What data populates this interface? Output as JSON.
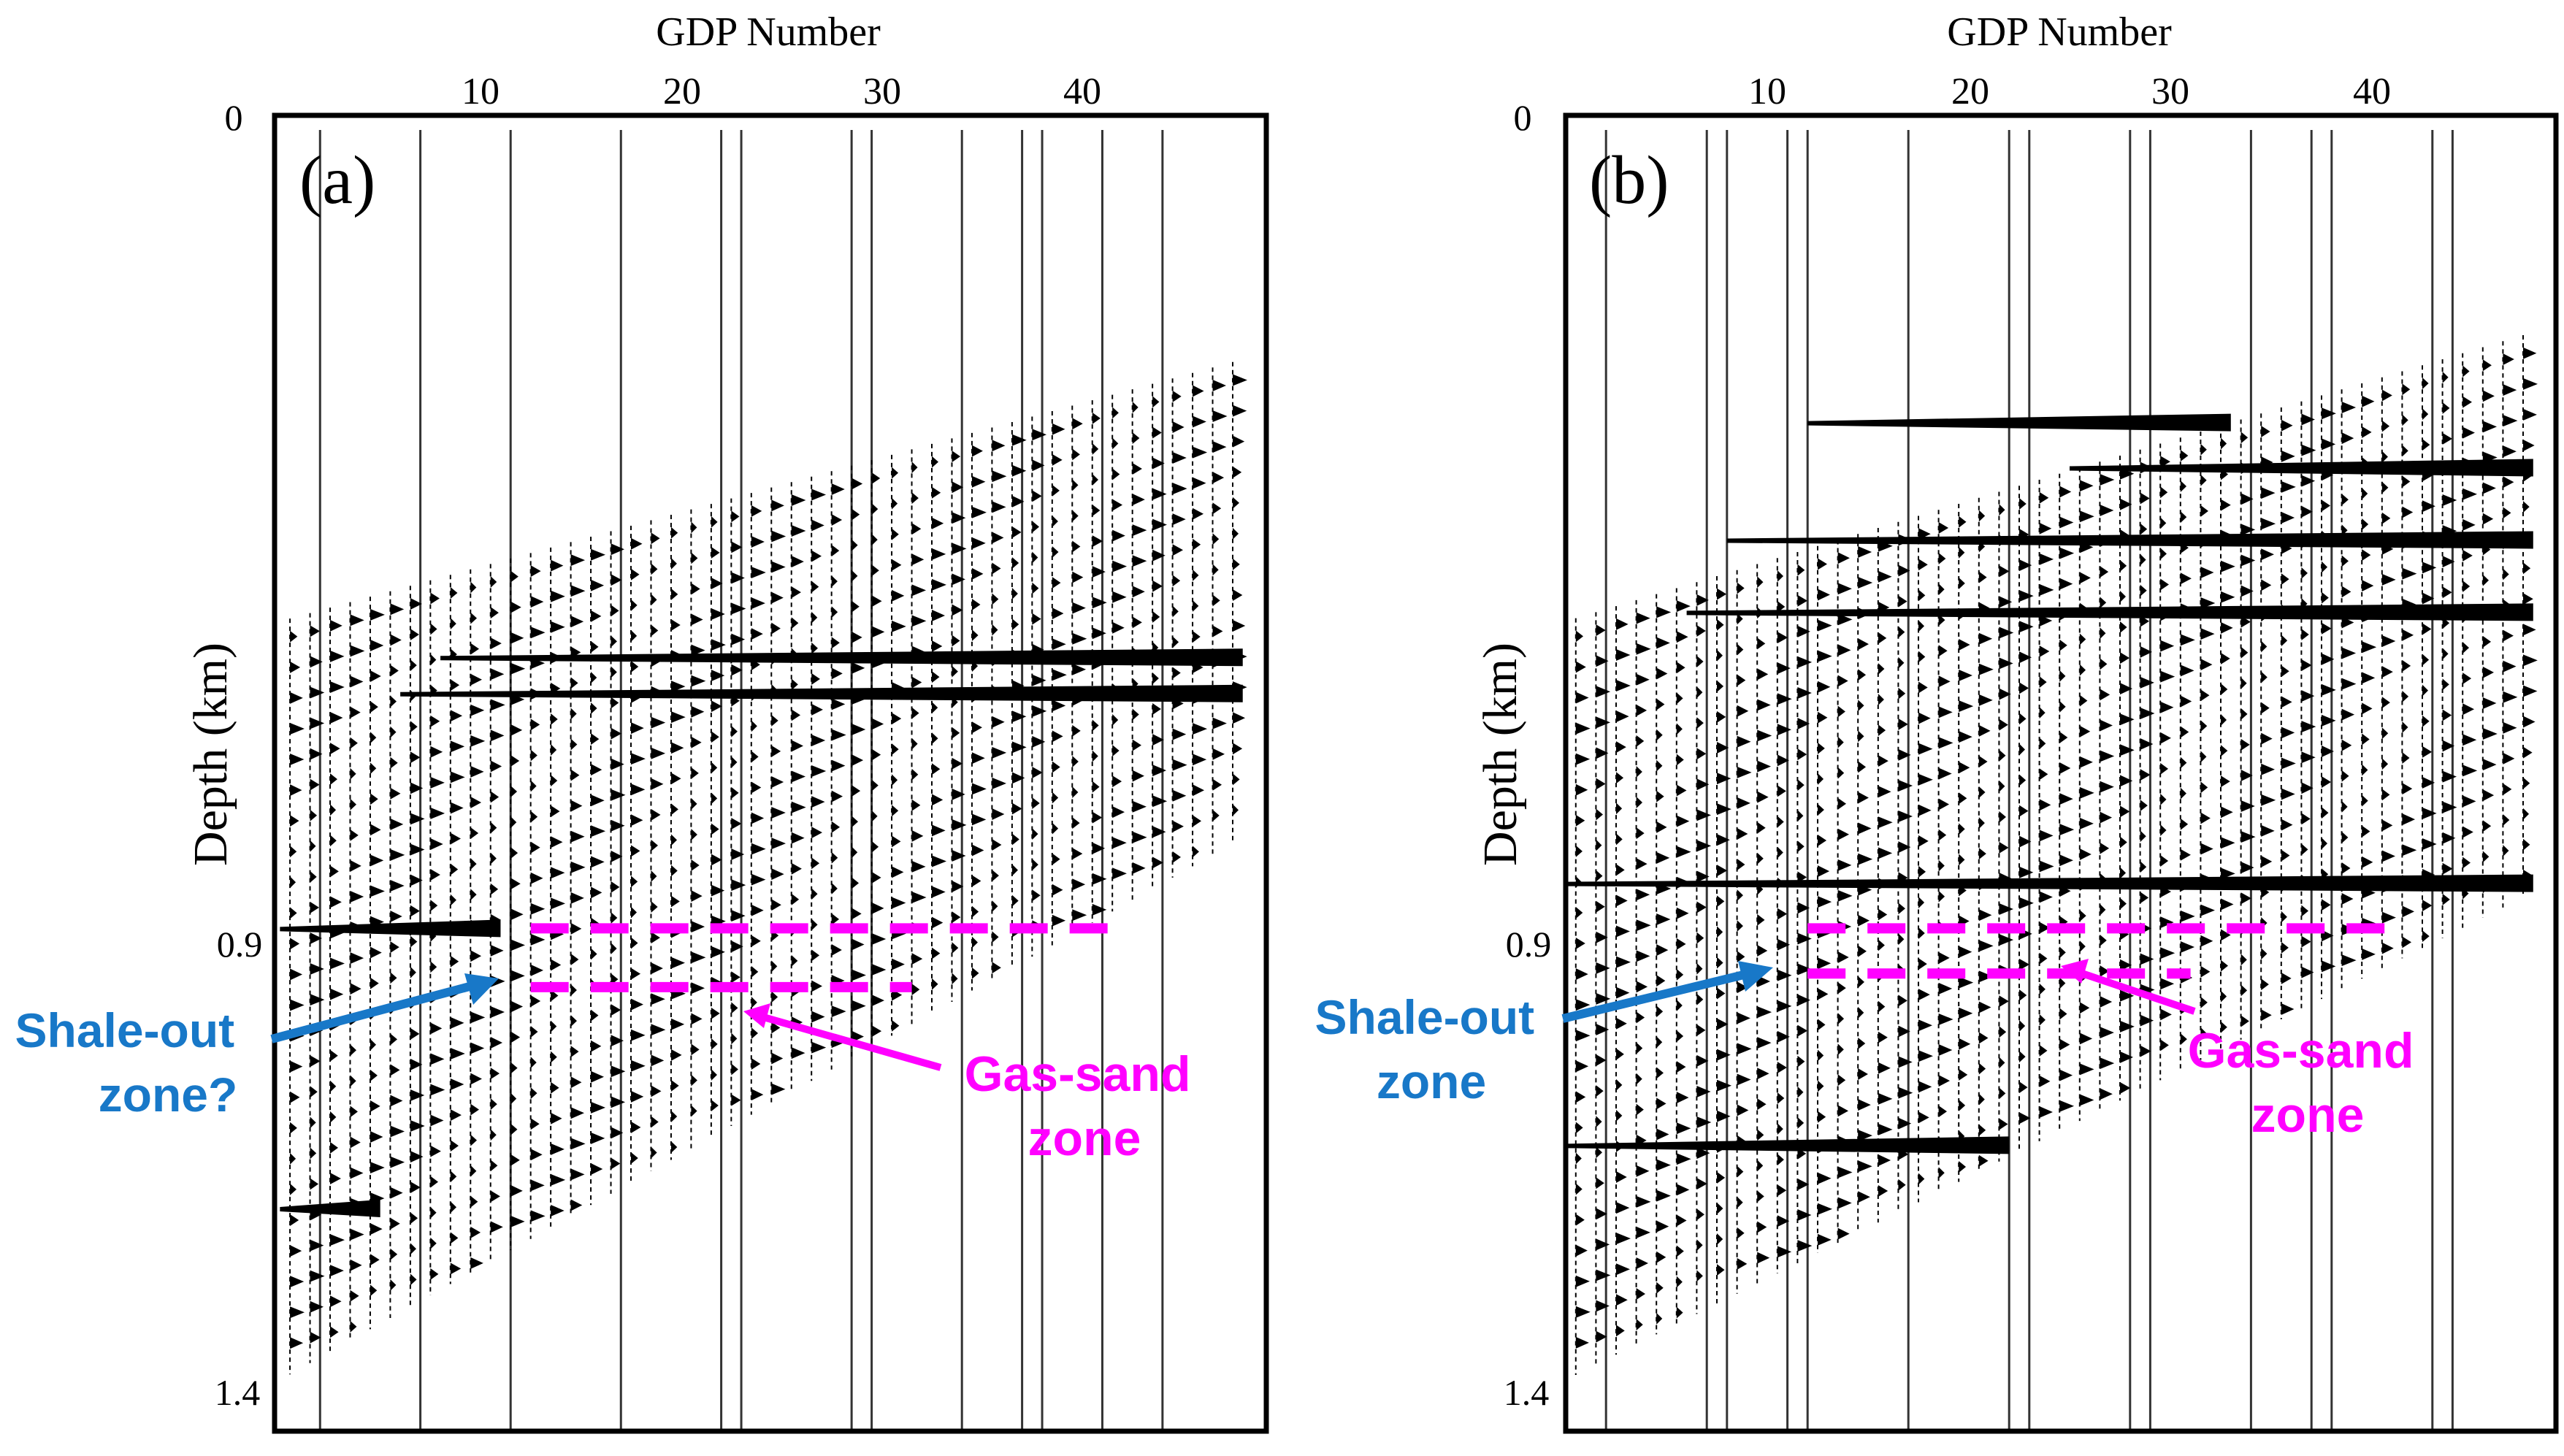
{
  "chart_data": [
    {
      "type": "seismic-wiggle",
      "panel_label": "(a)",
      "xlabel": "GDP Number",
      "ylabel": "Depth (km)",
      "x_ticks": [
        "10",
        "20",
        "30",
        "40"
      ],
      "x_tick_values": [
        10,
        20,
        30,
        40
      ],
      "y_ticks": [
        "0",
        "0.9",
        "1.4"
      ],
      "y_tick_values": [
        0,
        0.9,
        1.4
      ],
      "xlim": [
        0,
        49.5
      ],
      "ylim": [
        0,
        1.4
      ],
      "well_traces_gdp": [
        2,
        7,
        11.5,
        17,
        22,
        23,
        28.5,
        29.5,
        34,
        37,
        38,
        41,
        44
      ],
      "data_extent": {
        "top_depth_at_gdp0": 0.56,
        "top_depth_at_gdp48": 0.27,
        "bottom_depth_at_gdp0": 1.4,
        "bottom_depth_at_gdp48": 0.8
      },
      "strong_reflectors": [
        {
          "depth_km": 0.6,
          "gdp_range": [
            8,
            48
          ]
        },
        {
          "depth_km": 0.64,
          "gdp_range": [
            6,
            48
          ]
        },
        {
          "depth_km": 0.9,
          "gdp_range": [
            0,
            11
          ]
        },
        {
          "depth_km": 1.21,
          "gdp_range": [
            0,
            5
          ]
        }
      ],
      "gas_sand_zone": {
        "top_depth_km": 0.9,
        "top_gdp_range": [
          12.5,
          42
        ],
        "bottom_depth_km": 0.965,
        "bottom_gdp_range": [
          12.5,
          31.5
        ]
      },
      "annotations": [
        {
          "id": "shale",
          "text_lines": [
            "Shale-out",
            "zone?"
          ],
          "color": "#1878c8",
          "target": {
            "gdp": 10.5,
            "depth_km": 0.935
          }
        },
        {
          "id": "gas",
          "text_lines": [
            "Gas-sand",
            "zone"
          ],
          "color": "#ff00ff",
          "target": {
            "gdp": 24,
            "depth_km": 0.98
          }
        }
      ]
    },
    {
      "type": "seismic-wiggle",
      "panel_label": "(b)",
      "xlabel": "GDP Number",
      "ylabel": "Depth (km)",
      "x_ticks": [
        "10",
        "20",
        "30",
        "40"
      ],
      "x_tick_values": [
        10,
        20,
        30,
        40
      ],
      "y_ticks": [
        "0",
        "0.9",
        "1.4"
      ],
      "y_tick_values": [
        0,
        0.9,
        1.4
      ],
      "xlim": [
        0,
        49.5
      ],
      "ylim": [
        0,
        1.4
      ],
      "well_traces_gdp": [
        2,
        7,
        8,
        11,
        12,
        17,
        22,
        23,
        28,
        29,
        34,
        37,
        38,
        43,
        44
      ],
      "data_extent": {
        "top_depth_at_gdp0": 0.56,
        "top_depth_at_gdp48": 0.24,
        "bottom_depth_at_gdp0": 1.4,
        "bottom_depth_at_gdp48": 0.86
      },
      "strong_reflectors": [
        {
          "depth_km": 0.34,
          "gdp_range": [
            12,
            33
          ]
        },
        {
          "depth_km": 0.39,
          "gdp_range": [
            25,
            48
          ]
        },
        {
          "depth_km": 0.47,
          "gdp_range": [
            8,
            48
          ]
        },
        {
          "depth_km": 0.55,
          "gdp_range": [
            6,
            48
          ]
        },
        {
          "depth_km": 0.85,
          "gdp_range": [
            0,
            48
          ]
        },
        {
          "depth_km": 1.14,
          "gdp_range": [
            0,
            22
          ]
        }
      ],
      "gas_sand_zone": {
        "top_depth_km": 0.9,
        "top_gdp_range": [
          12,
          41
        ],
        "bottom_depth_km": 0.95,
        "bottom_gdp_range": [
          12,
          31
        ]
      },
      "annotations": [
        {
          "id": "shale",
          "text_lines": [
            "Shale-out",
            "zone"
          ],
          "color": "#1878c8",
          "target": {
            "gdp": 10,
            "depth_km": 0.925
          }
        },
        {
          "id": "gas",
          "text_lines": [
            "Gas-sand",
            "zone"
          ],
          "color": "#ff00ff",
          "target": {
            "gdp": 25,
            "depth_km": 0.92
          }
        }
      ]
    }
  ]
}
